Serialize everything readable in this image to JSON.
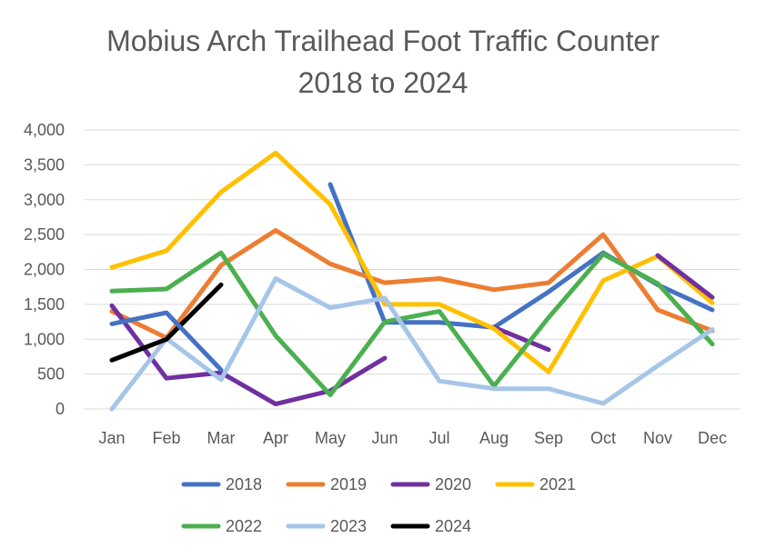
{
  "chart_data": {
    "type": "line",
    "title": "Mobius Arch Trailhead Foot Traffic Counter",
    "subtitle": "2018 to 2024",
    "xlabel": "",
    "ylabel": "",
    "ylim": [
      0,
      4000
    ],
    "yticks": [
      0,
      500,
      1000,
      1500,
      2000,
      2500,
      3000,
      3500,
      4000
    ],
    "ytick_labels": [
      "0",
      "500",
      "1,000",
      "1,500",
      "2,000",
      "2,500",
      "3,000",
      "3,500",
      "4,000"
    ],
    "categories": [
      "Jan",
      "Feb",
      "Mar",
      "Apr",
      "May",
      "Jun",
      "Jul",
      "Aug",
      "Sep",
      "Oct",
      "Nov",
      "Dec"
    ],
    "grid": true,
    "legend_position": "bottom",
    "series": [
      {
        "name": "2018",
        "color": "#4472C4",
        "values": [
          null,
          null,
          null,
          null,
          3220,
          1240,
          1240,
          1170,
          1680,
          2240,
          1780,
          1420
        ]
      },
      {
        "name": "2019",
        "color": "#ED7D31",
        "values": [
          1400,
          1020,
          2060,
          2560,
          2080,
          1810,
          1870,
          1710,
          1810,
          2500,
          1420,
          1120
        ]
      },
      {
        "name": "2020",
        "color": "#7030A0",
        "values": [
          1480,
          440,
          520,
          70,
          260,
          730,
          null,
          1170,
          850,
          null,
          null,
          null
        ]
      },
      {
        "name": "2021",
        "color": "#FFC000",
        "values": [
          2030,
          2270,
          3110,
          3670,
          2930,
          1500,
          1500,
          1150,
          530,
          1840,
          2190,
          1520
        ]
      },
      {
        "name": "2022",
        "color": "#4CAF50",
        "values": [
          1690,
          1720,
          2240,
          1050,
          200,
          1250,
          1400,
          330,
          1310,
          2220,
          1800,
          930
        ]
      },
      {
        "name": "2023",
        "color": "#A6C5E8",
        "values": [
          0,
          1010,
          420,
          1870,
          1450,
          1590,
          400,
          290,
          290,
          80,
          620,
          1140
        ]
      },
      {
        "name": "2024",
        "color": "#000000",
        "values": [
          700,
          1000,
          1780,
          null,
          null,
          null,
          null,
          null,
          null,
          null,
          null,
          null
        ]
      }
    ],
    "extra_segments": [
      {
        "series": "2018",
        "color": "#4472C4",
        "points": [
          [
            0,
            1220
          ],
          [
            1,
            1380
          ],
          [
            2,
            560
          ]
        ]
      },
      {
        "series": "2020",
        "color": "#7030A0",
        "points": [
          [
            10,
            2200
          ],
          [
            11,
            1600
          ]
        ]
      }
    ]
  }
}
